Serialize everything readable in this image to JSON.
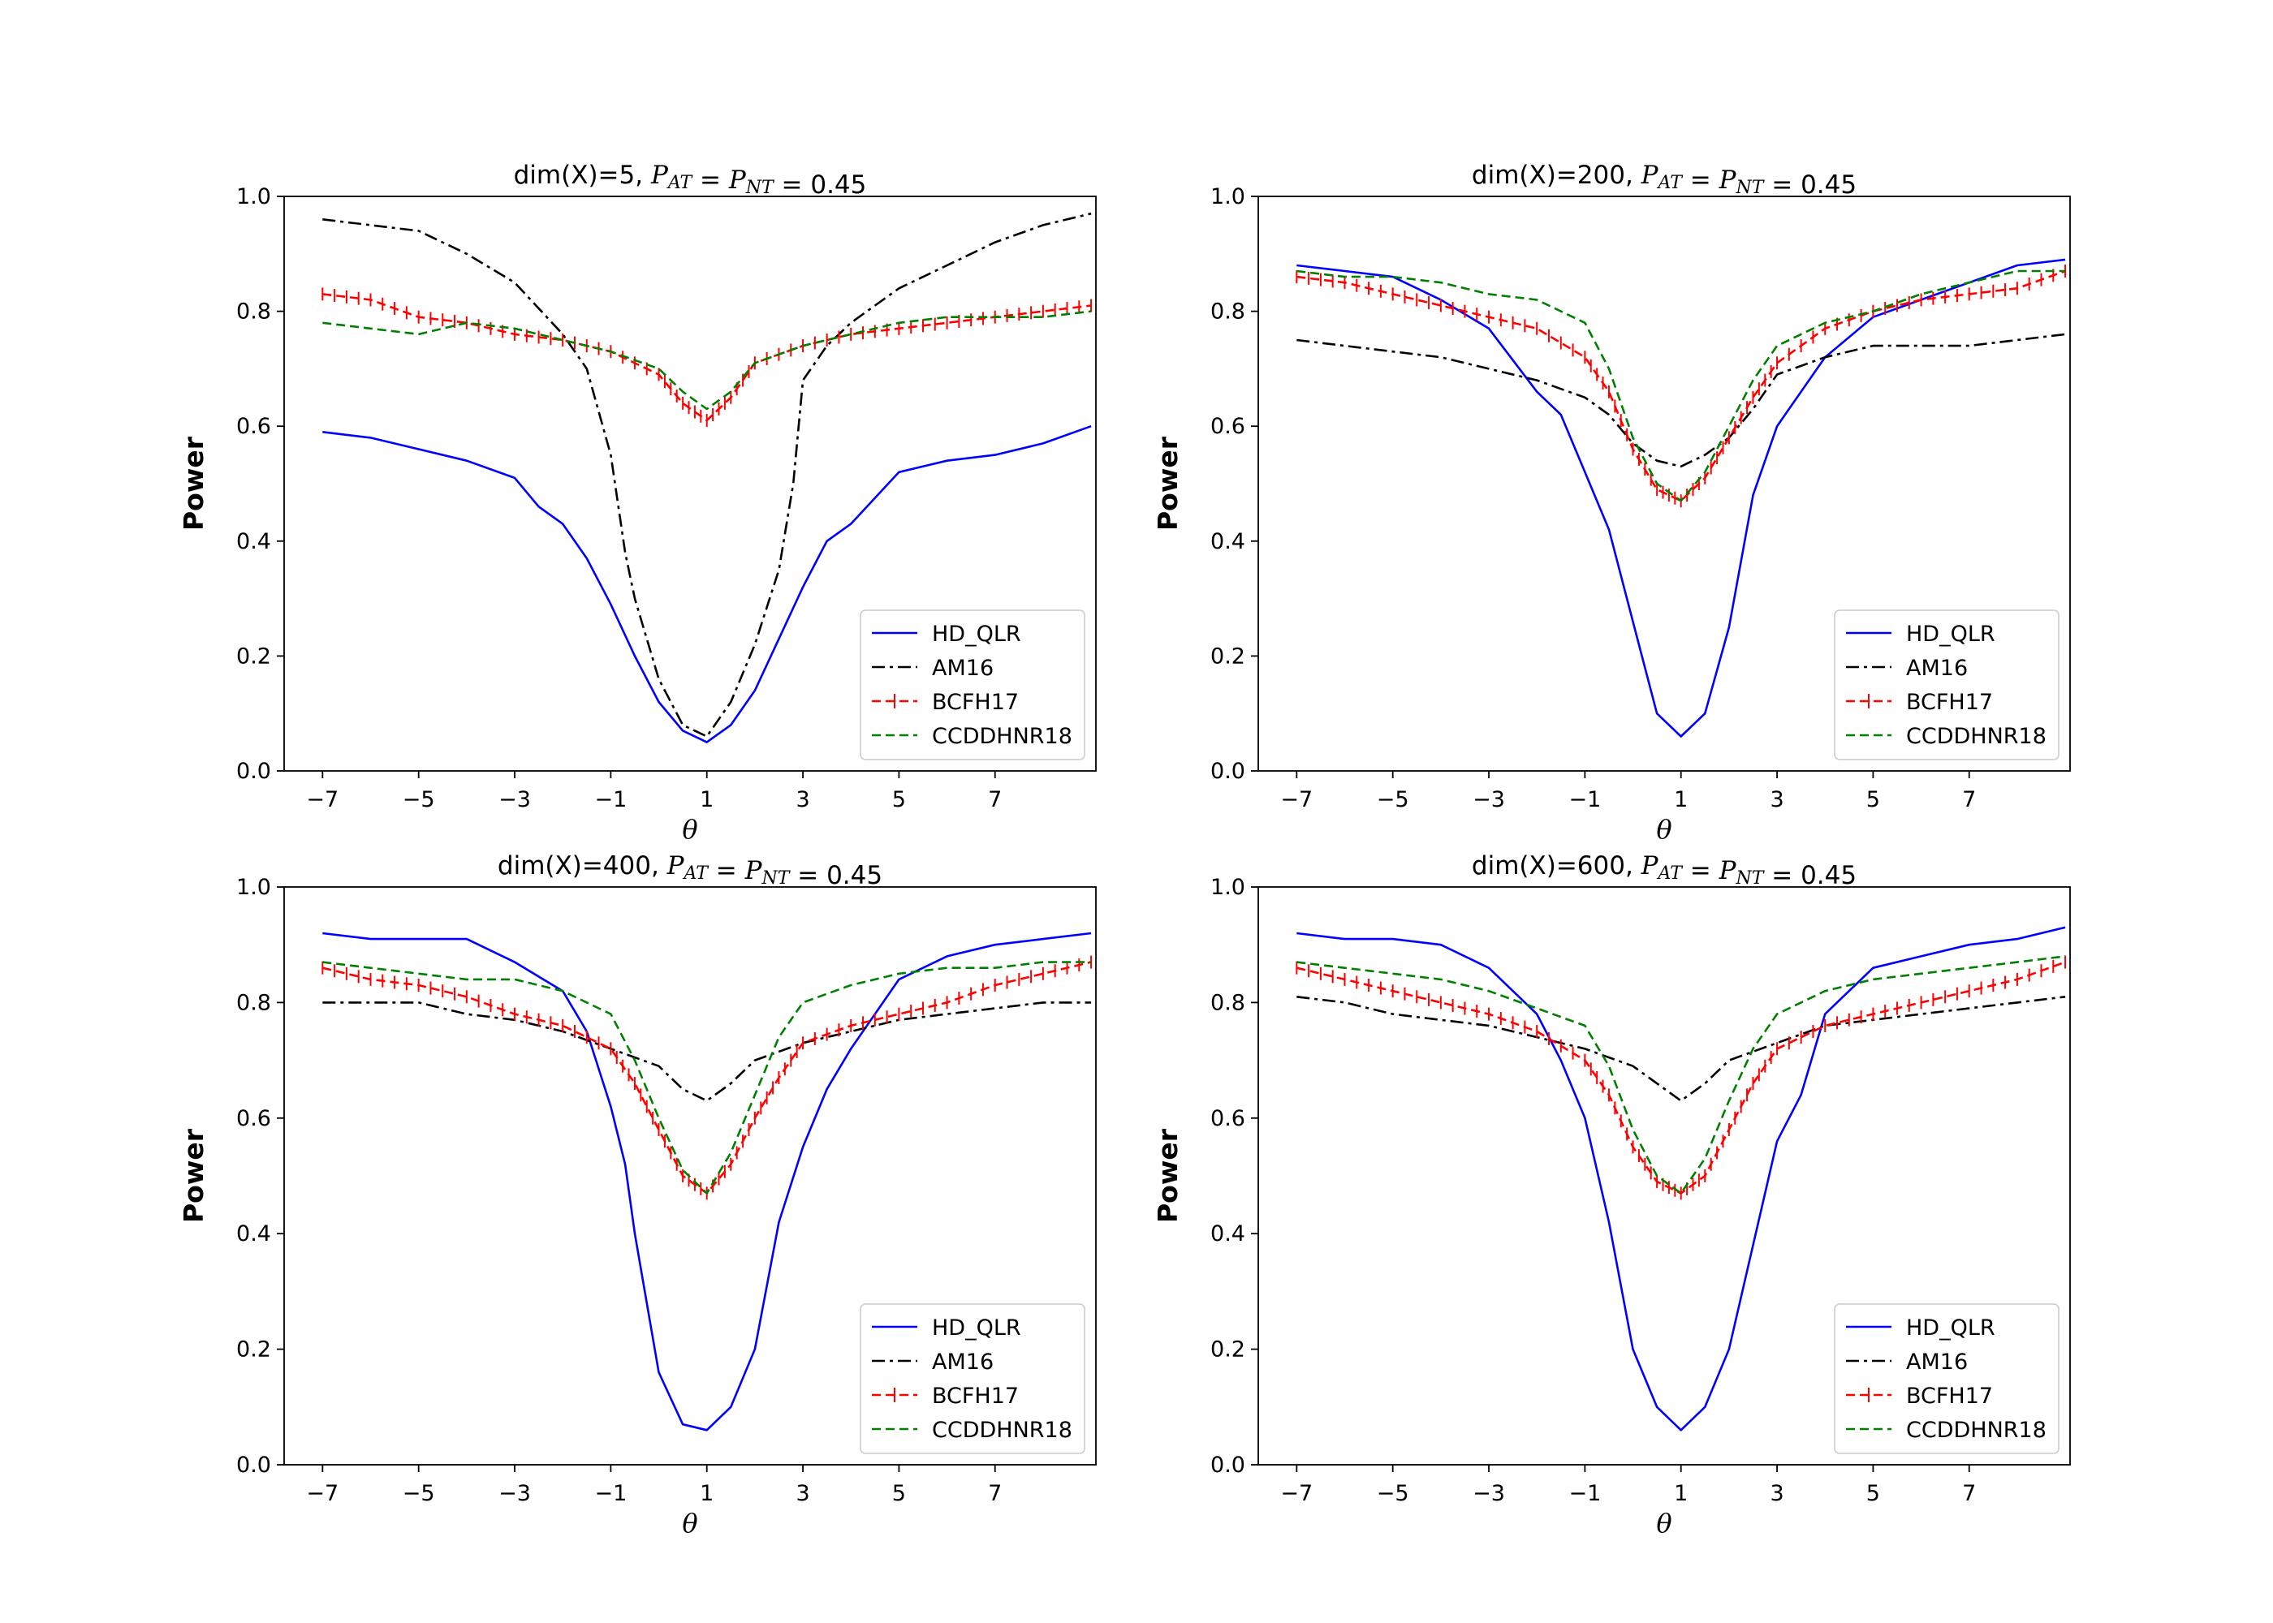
{
  "chart_data": [
    {
      "type": "line",
      "title": "dim(X)=5,",
      "title_formula": "P_AT = P_NT = 0.45",
      "xlabel": "θ",
      "ylabel": "Power",
      "xlim": [
        -7.8,
        9.1
      ],
      "ylim": [
        0,
        1
      ],
      "xticks": [
        "−7",
        "−5",
        "−3",
        "−1",
        "1",
        "3",
        "5",
        "7"
      ],
      "yticks": [
        "0.0",
        "0.2",
        "0.4",
        "0.6",
        "0.8",
        "1.0"
      ],
      "legend_position": "lower-right",
      "series": [
        {
          "name": "HD_QLR",
          "color": "#0000ff",
          "style": "solid",
          "x": [
            -7,
            -6,
            -5,
            -4,
            -3,
            -2.5,
            -2,
            -1.5,
            -1,
            -0.5,
            0,
            0.5,
            1,
            1.5,
            2,
            2.5,
            3,
            3.5,
            4,
            5,
            6,
            7,
            8,
            9
          ],
          "y": [
            0.59,
            0.58,
            0.56,
            0.54,
            0.51,
            0.46,
            0.43,
            0.37,
            0.29,
            0.2,
            0.12,
            0.07,
            0.05,
            0.08,
            0.14,
            0.23,
            0.32,
            0.4,
            0.43,
            0.52,
            0.54,
            0.55,
            0.57,
            0.6
          ]
        },
        {
          "name": "AM16",
          "color": "#000000",
          "style": "dashdot",
          "x": [
            -7,
            -6,
            -5,
            -4,
            -3,
            -2,
            -1.5,
            -1,
            -0.7,
            -0.5,
            0,
            0.5,
            1,
            1.5,
            2,
            2.5,
            2.8,
            3,
            3.5,
            4,
            5,
            6,
            7,
            8,
            9
          ],
          "y": [
            0.96,
            0.95,
            0.94,
            0.9,
            0.85,
            0.76,
            0.7,
            0.55,
            0.38,
            0.3,
            0.16,
            0.08,
            0.06,
            0.12,
            0.22,
            0.35,
            0.5,
            0.68,
            0.74,
            0.78,
            0.84,
            0.88,
            0.92,
            0.95,
            0.97
          ]
        },
        {
          "name": "BCFH17",
          "color": "#ff0000",
          "style": "dashed-markers",
          "x": [
            -7,
            -6,
            -5,
            -4,
            -3,
            -2,
            -1,
            0,
            0.5,
            1,
            1.5,
            2,
            3,
            4,
            5,
            6,
            7,
            8,
            9
          ],
          "y": [
            0.83,
            0.82,
            0.79,
            0.78,
            0.76,
            0.75,
            0.73,
            0.69,
            0.64,
            0.61,
            0.65,
            0.71,
            0.74,
            0.76,
            0.77,
            0.78,
            0.79,
            0.8,
            0.81
          ]
        },
        {
          "name": "CCDDHNR18",
          "color": "#008000",
          "style": "dashed",
          "x": [
            -7,
            -6,
            -5,
            -4,
            -3,
            -2,
            -1,
            0,
            0.5,
            1,
            1.5,
            2,
            3,
            4,
            5,
            6,
            7,
            8,
            9
          ],
          "y": [
            0.78,
            0.77,
            0.76,
            0.78,
            0.77,
            0.75,
            0.73,
            0.7,
            0.66,
            0.63,
            0.66,
            0.71,
            0.74,
            0.76,
            0.78,
            0.79,
            0.79,
            0.79,
            0.8
          ]
        }
      ]
    },
    {
      "type": "line",
      "title": "dim(X)=200,",
      "title_formula": "P_AT = P_NT = 0.45",
      "xlabel": "θ",
      "ylabel": "Power",
      "xlim": [
        -7.8,
        9.1
      ],
      "ylim": [
        0,
        1
      ],
      "xticks": [
        "−7",
        "−5",
        "−3",
        "−1",
        "1",
        "3",
        "5",
        "7"
      ],
      "yticks": [
        "0.0",
        "0.2",
        "0.4",
        "0.6",
        "0.8",
        "1.0"
      ],
      "legend_position": "lower-right",
      "series": [
        {
          "name": "HD_QLR",
          "color": "#0000ff",
          "style": "solid",
          "x": [
            -7,
            -6,
            -5,
            -4,
            -3,
            -2,
            -1.5,
            -1,
            -0.5,
            0,
            0.5,
            1,
            1.5,
            2,
            2.5,
            3,
            3.5,
            4,
            5,
            6,
            7,
            8,
            9
          ],
          "y": [
            0.88,
            0.87,
            0.86,
            0.82,
            0.77,
            0.66,
            0.62,
            0.52,
            0.42,
            0.26,
            0.1,
            0.06,
            0.1,
            0.25,
            0.48,
            0.6,
            0.66,
            0.72,
            0.79,
            0.82,
            0.85,
            0.88,
            0.89
          ]
        },
        {
          "name": "AM16",
          "color": "#000000",
          "style": "dashdot",
          "x": [
            -7,
            -6,
            -5,
            -4,
            -3,
            -2,
            -1,
            -0.5,
            0,
            0.5,
            1,
            1.5,
            2,
            2.5,
            3,
            4,
            5,
            6,
            7,
            8,
            9
          ],
          "y": [
            0.75,
            0.74,
            0.73,
            0.72,
            0.7,
            0.68,
            0.65,
            0.62,
            0.57,
            0.54,
            0.53,
            0.55,
            0.58,
            0.63,
            0.69,
            0.72,
            0.74,
            0.74,
            0.74,
            0.75,
            0.76
          ]
        },
        {
          "name": "BCFH17",
          "color": "#ff0000",
          "style": "dashed-markers",
          "x": [
            -7,
            -6,
            -5,
            -4,
            -3,
            -2,
            -1,
            -0.5,
            0,
            0.5,
            1,
            1.5,
            2,
            2.5,
            3,
            4,
            5,
            6,
            7,
            8,
            9
          ],
          "y": [
            0.86,
            0.85,
            0.83,
            0.81,
            0.79,
            0.77,
            0.72,
            0.66,
            0.56,
            0.49,
            0.47,
            0.51,
            0.58,
            0.65,
            0.71,
            0.77,
            0.8,
            0.82,
            0.83,
            0.84,
            0.87
          ]
        },
        {
          "name": "CCDDHNR18",
          "color": "#008000",
          "style": "dashed",
          "x": [
            -7,
            -6,
            -5,
            -4,
            -3,
            -2,
            -1,
            -0.5,
            0,
            0.5,
            1,
            1.5,
            2,
            2.5,
            3,
            4,
            5,
            6,
            7,
            8,
            9
          ],
          "y": [
            0.87,
            0.86,
            0.86,
            0.85,
            0.83,
            0.82,
            0.78,
            0.7,
            0.58,
            0.5,
            0.47,
            0.52,
            0.6,
            0.68,
            0.74,
            0.78,
            0.8,
            0.83,
            0.85,
            0.87,
            0.87
          ]
        }
      ]
    },
    {
      "type": "line",
      "title": "dim(X)=400,",
      "title_formula": "P_AT = P_NT = 0.45",
      "xlabel": "θ",
      "ylabel": "Power",
      "xlim": [
        -7.8,
        9.1
      ],
      "ylim": [
        0,
        1
      ],
      "xticks": [
        "−7",
        "−5",
        "−3",
        "−1",
        "1",
        "3",
        "5",
        "7"
      ],
      "yticks": [
        "0.0",
        "0.2",
        "0.4",
        "0.6",
        "0.8",
        "1.0"
      ],
      "legend_position": "lower-right",
      "series": [
        {
          "name": "HD_QLR",
          "color": "#0000ff",
          "style": "solid",
          "x": [
            -7,
            -6,
            -5,
            -4,
            -3,
            -2,
            -1.5,
            -1,
            -0.7,
            -0.5,
            0,
            0.5,
            1,
            1.5,
            2,
            2.5,
            3,
            3.5,
            4,
            5,
            6,
            7,
            8,
            9
          ],
          "y": [
            0.92,
            0.91,
            0.91,
            0.91,
            0.87,
            0.82,
            0.75,
            0.62,
            0.52,
            0.4,
            0.16,
            0.07,
            0.06,
            0.1,
            0.2,
            0.42,
            0.55,
            0.65,
            0.72,
            0.84,
            0.88,
            0.9,
            0.91,
            0.92
          ]
        },
        {
          "name": "AM16",
          "color": "#000000",
          "style": "dashdot",
          "x": [
            -7,
            -6,
            -5,
            -4,
            -3,
            -2,
            -1,
            0,
            0.5,
            1,
            1.5,
            2,
            3,
            4,
            5,
            6,
            7,
            8,
            9
          ],
          "y": [
            0.8,
            0.8,
            0.8,
            0.78,
            0.77,
            0.75,
            0.72,
            0.69,
            0.65,
            0.63,
            0.66,
            0.7,
            0.73,
            0.75,
            0.77,
            0.78,
            0.79,
            0.8,
            0.8
          ]
        },
        {
          "name": "BCFH17",
          "color": "#ff0000",
          "style": "dashed-markers",
          "x": [
            -7,
            -6,
            -5,
            -4,
            -3,
            -2,
            -1,
            -0.5,
            0,
            0.5,
            1,
            1.5,
            2,
            2.5,
            3,
            4,
            5,
            6,
            7,
            8,
            9
          ],
          "y": [
            0.86,
            0.84,
            0.83,
            0.81,
            0.78,
            0.76,
            0.72,
            0.66,
            0.58,
            0.5,
            0.47,
            0.52,
            0.6,
            0.67,
            0.73,
            0.76,
            0.78,
            0.8,
            0.83,
            0.85,
            0.87
          ]
        },
        {
          "name": "CCDDHNR18",
          "color": "#008000",
          "style": "dashed",
          "x": [
            -7,
            -6,
            -5,
            -4,
            -3,
            -2,
            -1,
            -0.5,
            0,
            0.5,
            1,
            1.5,
            2,
            2.5,
            3,
            4,
            5,
            6,
            7,
            8,
            9
          ],
          "y": [
            0.87,
            0.86,
            0.85,
            0.84,
            0.84,
            0.82,
            0.78,
            0.7,
            0.6,
            0.51,
            0.47,
            0.54,
            0.64,
            0.74,
            0.8,
            0.83,
            0.85,
            0.86,
            0.86,
            0.87,
            0.87
          ]
        }
      ]
    },
    {
      "type": "line",
      "title": "dim(X)=600,",
      "title_formula": "P_AT = P_NT = 0.45",
      "xlabel": "θ",
      "ylabel": "Power",
      "xlim": [
        -7.8,
        9.1
      ],
      "ylim": [
        0,
        1
      ],
      "xticks": [
        "−7",
        "−5",
        "−3",
        "−1",
        "1",
        "3",
        "5",
        "7"
      ],
      "yticks": [
        "0.0",
        "0.2",
        "0.4",
        "0.6",
        "0.8",
        "1.0"
      ],
      "legend_position": "lower-right",
      "series": [
        {
          "name": "HD_QLR",
          "color": "#0000ff",
          "style": "solid",
          "x": [
            -7,
            -6,
            -5,
            -4,
            -3,
            -2,
            -1.5,
            -1,
            -0.5,
            0,
            0.5,
            1,
            1.5,
            2,
            2.5,
            3,
            3.5,
            4,
            5,
            6,
            7,
            8,
            9
          ],
          "y": [
            0.92,
            0.91,
            0.91,
            0.9,
            0.86,
            0.78,
            0.7,
            0.6,
            0.42,
            0.2,
            0.1,
            0.06,
            0.1,
            0.2,
            0.38,
            0.56,
            0.64,
            0.78,
            0.86,
            0.88,
            0.9,
            0.91,
            0.93
          ]
        },
        {
          "name": "AM16",
          "color": "#000000",
          "style": "dashdot",
          "x": [
            -7,
            -6,
            -5,
            -4,
            -3,
            -2,
            -1,
            0,
            0.5,
            1,
            1.5,
            2,
            3,
            4,
            5,
            6,
            7,
            8,
            9
          ],
          "y": [
            0.81,
            0.8,
            0.78,
            0.77,
            0.76,
            0.74,
            0.72,
            0.69,
            0.66,
            0.63,
            0.66,
            0.7,
            0.73,
            0.76,
            0.77,
            0.78,
            0.79,
            0.8,
            0.81
          ]
        },
        {
          "name": "BCFH17",
          "color": "#ff0000",
          "style": "dashed-markers",
          "x": [
            -7,
            -6,
            -5,
            -4,
            -3,
            -2,
            -1,
            -0.5,
            0,
            0.5,
            1,
            1.5,
            2,
            2.5,
            3,
            4,
            5,
            6,
            7,
            8,
            9
          ],
          "y": [
            0.86,
            0.84,
            0.82,
            0.8,
            0.78,
            0.75,
            0.7,
            0.64,
            0.55,
            0.49,
            0.47,
            0.5,
            0.58,
            0.66,
            0.72,
            0.76,
            0.78,
            0.8,
            0.82,
            0.84,
            0.87
          ]
        },
        {
          "name": "CCDDHNR18",
          "color": "#008000",
          "style": "dashed",
          "x": [
            -7,
            -6,
            -5,
            -4,
            -3,
            -2,
            -1,
            -0.5,
            0,
            0.5,
            1,
            1.5,
            2,
            2.5,
            3,
            4,
            5,
            6,
            7,
            8,
            9
          ],
          "y": [
            0.87,
            0.86,
            0.85,
            0.84,
            0.82,
            0.79,
            0.76,
            0.69,
            0.58,
            0.5,
            0.47,
            0.53,
            0.63,
            0.72,
            0.78,
            0.82,
            0.84,
            0.85,
            0.86,
            0.87,
            0.88
          ]
        }
      ]
    }
  ]
}
